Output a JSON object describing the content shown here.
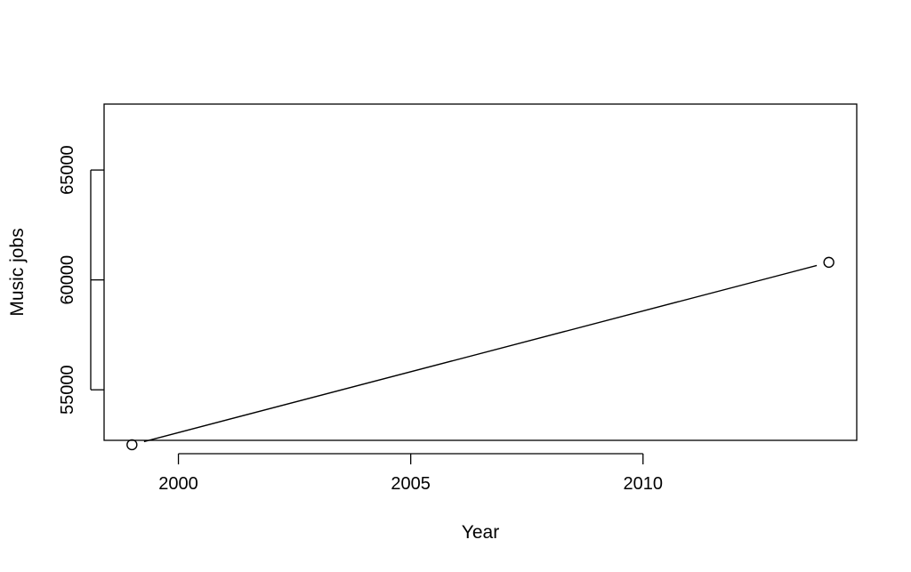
{
  "chart_data": {
    "type": "line",
    "title": "",
    "xlabel": "Year",
    "ylabel": "Music jobs",
    "x": [
      1999,
      2014
    ],
    "series": [
      {
        "values": [
          52500,
          60800
        ]
      }
    ],
    "xlim": [
      1998.4,
      2014.6
    ],
    "ylim": [
      52700,
      68000
    ],
    "xticks": [
      2000,
      2005,
      2010
    ],
    "xtick_labels": [
      "2000",
      "2005",
      "2010"
    ],
    "yticks": [
      55000,
      60000,
      65000
    ],
    "ytick_labels": [
      "55000",
      "60000",
      "65000"
    ],
    "markers": "open-circle",
    "line_style": "solid",
    "grid": false,
    "legend": "none",
    "colors": {
      "line": "#000000",
      "marker": "#000000",
      "background": "#ffffff"
    }
  }
}
